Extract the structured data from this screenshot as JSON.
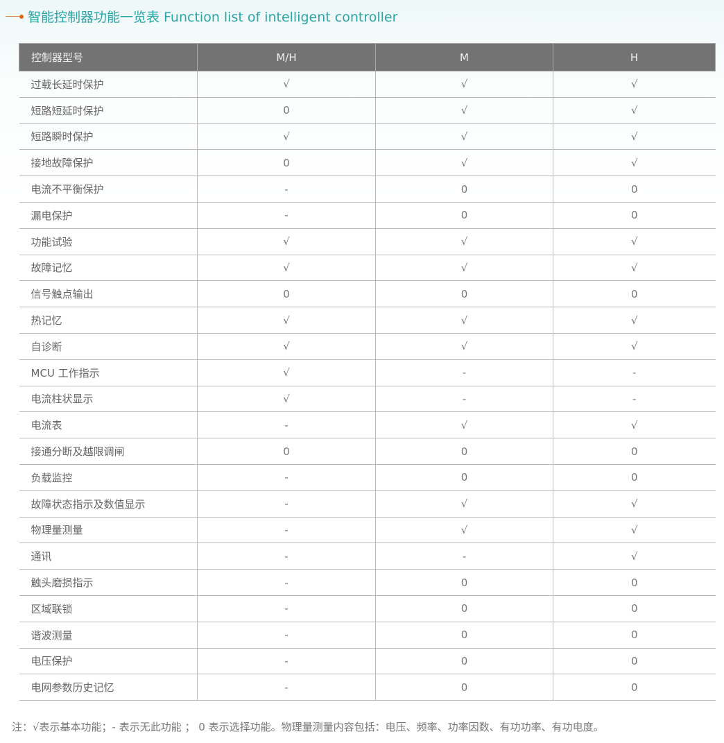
{
  "title": "智能控制器功能一览表 Function list of intelligent controller",
  "table": {
    "headers": [
      "控制器型号",
      "M/H",
      "M",
      "H"
    ],
    "rows": [
      [
        "过载长延时保护",
        "√",
        "√",
        "√"
      ],
      [
        "短路短延时保护",
        "0",
        "√",
        "√"
      ],
      [
        "短路瞬时保护",
        "√",
        "√",
        "√"
      ],
      [
        "接地故障保护",
        "0",
        "√",
        "√"
      ],
      [
        "电流不平衡保护",
        "-",
        "0",
        "0"
      ],
      [
        "漏电保护",
        "-",
        "0",
        "0"
      ],
      [
        "功能试验",
        "√",
        "√",
        "√"
      ],
      [
        "故障记忆",
        "√",
        "√",
        "√"
      ],
      [
        "信号触点输出",
        "0",
        "0",
        "0"
      ],
      [
        "热记忆",
        "√",
        "√",
        "√"
      ],
      [
        "自诊断",
        "√",
        "√",
        "√"
      ],
      [
        "MCU 工作指示",
        "√",
        "-",
        "-"
      ],
      [
        "电流柱状显示",
        "√",
        "-",
        "-"
      ],
      [
        "电流表",
        "-",
        "√",
        "√"
      ],
      [
        "接通分断及越限调闸",
        "0",
        "0",
        "0"
      ],
      [
        "负载监控",
        "-",
        "0",
        "0"
      ],
      [
        "故障状态指示及数值显示",
        "-",
        "√",
        "√"
      ],
      [
        "物理量测量",
        "-",
        "√",
        "√"
      ],
      [
        "通讯",
        "-",
        "-",
        "√"
      ],
      [
        "触头磨损指示",
        "-",
        "0",
        "0"
      ],
      [
        "区域联锁",
        "-",
        "0",
        "0"
      ],
      [
        "谐波测量",
        "-",
        "0",
        "0"
      ],
      [
        "电压保护",
        "-",
        "0",
        "0"
      ],
      [
        "电网参数历史记忆",
        "-",
        "0",
        "0"
      ]
    ]
  },
  "note": "注：√表示基本功能；- 表示无此功能 ； 0 表示选择功能。物理量测量内容包括：电压、频率、功率因数、有功功率、有功电度。"
}
